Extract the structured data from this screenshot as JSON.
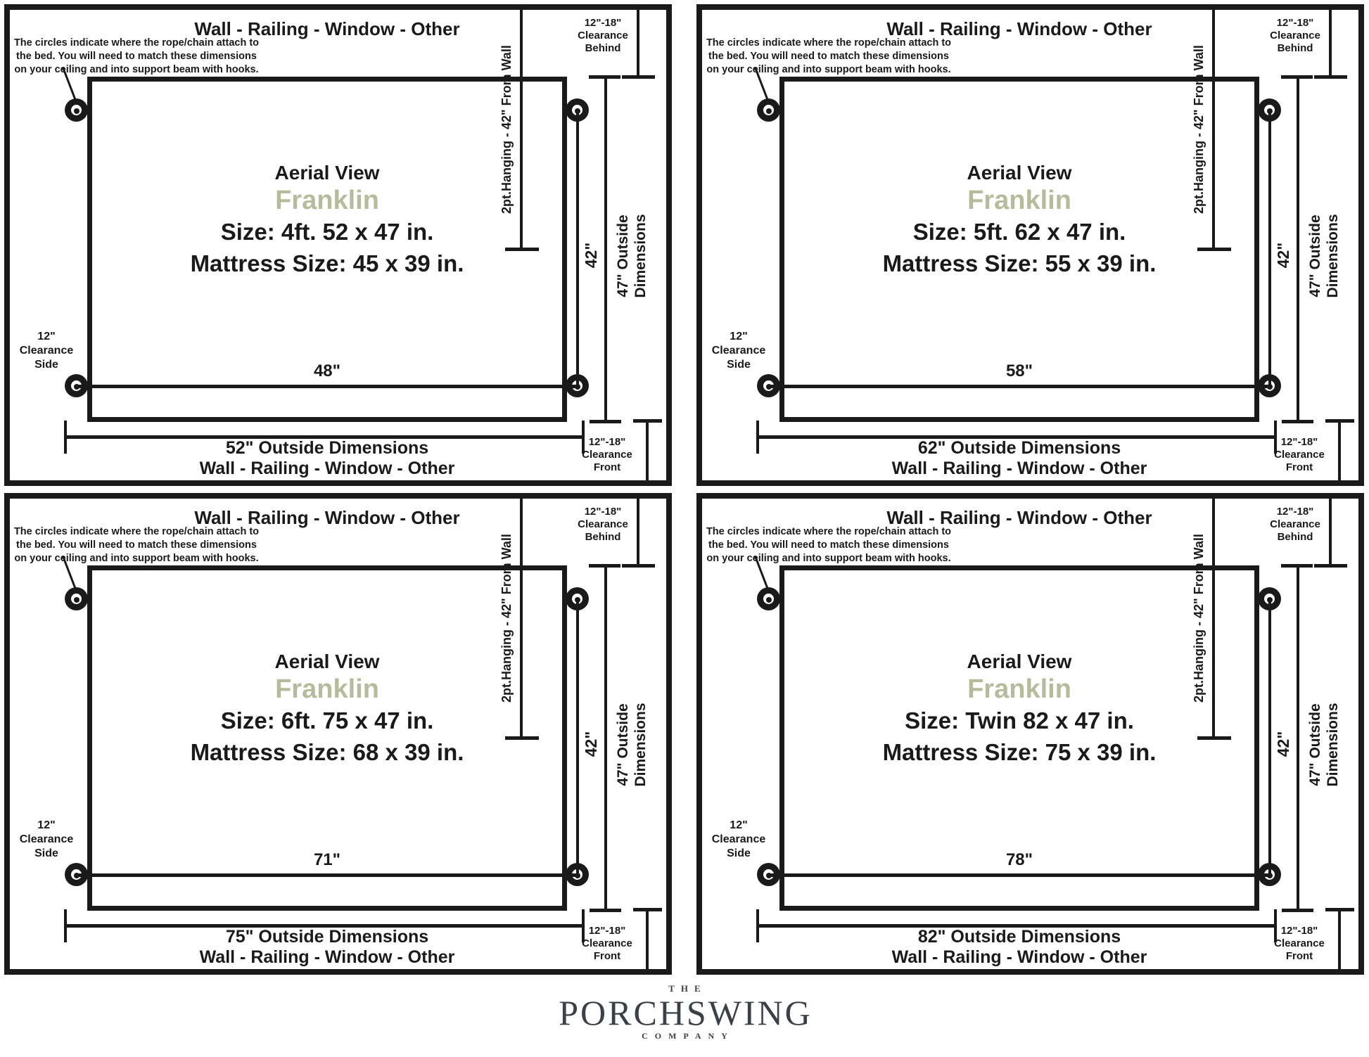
{
  "colors": {
    "line": "#1a1a1a",
    "model_name": "#b8bb9b",
    "logo": "#3b3f48"
  },
  "panels": [
    {
      "top_wall_label": "Wall - Railing - Window - Other",
      "note_lines": [
        "The circles indicate where the rope/chain attach to",
        "the bed. You will need to match these dimensions",
        "on your ceiling and into support beam with hooks."
      ],
      "clearance_behind": [
        "12\"-18\"",
        "Clearance",
        "Behind"
      ],
      "hanging_label": "2pt.Hanging - 42\" From Wall",
      "aerial_view": "Aerial View",
      "model": "Franklin",
      "size_label": "Size: 4ft. 52 x 47 in.",
      "mattress_label": "Mattress Size: 45 x 39 in.",
      "clearance_side": [
        "12\"",
        "Clearance",
        "Side"
      ],
      "rope_span_label": "48\"",
      "hang_span_label": "42\"",
      "outside_depth_label": [
        "47\" Outside",
        "Dimensions"
      ],
      "outside_width_label": "52\" Outside Dimensions",
      "bottom_wall_label": "Wall - Railing - Window - Other",
      "clearance_front": [
        "12\"-18\"",
        "Clearance",
        "Front"
      ]
    },
    {
      "top_wall_label": "Wall - Railing - Window - Other",
      "note_lines": [
        "The circles indicate where the rope/chain attach to",
        "the bed. You will need to match these dimensions",
        "on your ceiling and into support beam with hooks."
      ],
      "clearance_behind": [
        "12\"-18\"",
        "Clearance",
        "Behind"
      ],
      "hanging_label": "2pt.Hanging - 42\" From Wall",
      "aerial_view": "Aerial View",
      "model": "Franklin",
      "size_label": "Size: 5ft. 62 x 47 in.",
      "mattress_label": "Mattress Size: 55 x 39 in.",
      "clearance_side": [
        "12\"",
        "Clearance",
        "Side"
      ],
      "rope_span_label": "58\"",
      "hang_span_label": "42\"",
      "outside_depth_label": [
        "47\" Outside",
        "Dimensions"
      ],
      "outside_width_label": "62\" Outside Dimensions",
      "bottom_wall_label": "Wall - Railing - Window - Other",
      "clearance_front": [
        "12\"-18\"",
        "Clearance",
        "Front"
      ]
    },
    {
      "top_wall_label": "Wall - Railing - Window - Other",
      "note_lines": [
        "The circles indicate where the rope/chain attach to",
        "the bed. You will need to match these dimensions",
        "on your ceiling and into support beam with hooks."
      ],
      "clearance_behind": [
        "12\"-18\"",
        "Clearance",
        "Behind"
      ],
      "hanging_label": "2pt.Hanging - 42\" From Wall",
      "aerial_view": "Aerial View",
      "model": "Franklin",
      "size_label": "Size: 6ft. 75 x 47 in.",
      "mattress_label": "Mattress Size: 68 x 39 in.",
      "clearance_side": [
        "12\"",
        "Clearance",
        "Side"
      ],
      "rope_span_label": "71\"",
      "hang_span_label": "42\"",
      "outside_depth_label": [
        "47\" Outside",
        "Dimensions"
      ],
      "outside_width_label": "75\" Outside Dimensions",
      "bottom_wall_label": "Wall - Railing - Window - Other",
      "clearance_front": [
        "12\"-18\"",
        "Clearance",
        "Front"
      ]
    },
    {
      "top_wall_label": "Wall - Railing - Window - Other",
      "note_lines": [
        "The circles indicate where the rope/chain attach to",
        "the bed. You will need to match these dimensions",
        "on your ceiling and into support beam with hooks."
      ],
      "clearance_behind": [
        "12\"-18\"",
        "Clearance",
        "Behind"
      ],
      "hanging_label": "2pt.Hanging - 42\" From Wall",
      "aerial_view": "Aerial View",
      "model": "Franklin",
      "size_label": "Size: Twin 82 x 47 in.",
      "mattress_label": "Mattress Size: 75 x 39 in.",
      "clearance_side": [
        "12\"",
        "Clearance",
        "Side"
      ],
      "rope_span_label": "78\"",
      "hang_span_label": "42\"",
      "outside_depth_label": [
        "47\" Outside",
        "Dimensions"
      ],
      "outside_width_label": "82\" Outside Dimensions",
      "bottom_wall_label": "Wall - Railing - Window - Other",
      "clearance_front": [
        "12\"-18\"",
        "Clearance",
        "Front"
      ]
    }
  ],
  "logo": {
    "the": "THE",
    "name": "PORCHSWING",
    "company": "COMPANY"
  }
}
